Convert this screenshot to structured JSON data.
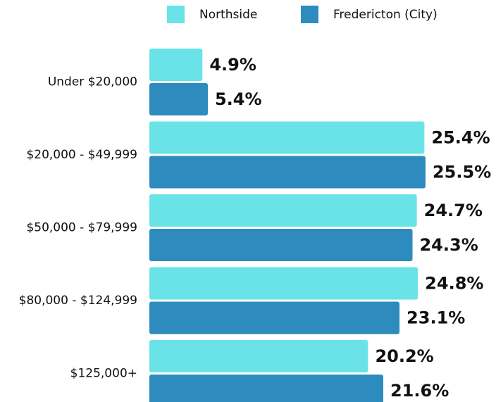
{
  "chart_data": {
    "type": "bar",
    "orientation": "horizontal",
    "categories": [
      "Under $20,000",
      "$20,000 - $49,999",
      "$50,000 - $79,999",
      "$80,000 - $124,999",
      "$125,000+"
    ],
    "series": [
      {
        "name": "Northside",
        "color": "#6ae3e8",
        "values": [
          4.9,
          25.4,
          24.7,
          24.8,
          20.2
        ],
        "value_labels": [
          "4.9%",
          "25.4%",
          "24.7%",
          "24.8%",
          "20.2%"
        ]
      },
      {
        "name": "Fredericton (City)",
        "color": "#2e8bbd",
        "values": [
          5.4,
          25.5,
          24.3,
          23.1,
          21.6
        ],
        "value_labels": [
          "5.4%",
          "25.5%",
          "24.3%",
          "23.1%",
          "21.6%"
        ]
      }
    ],
    "legend": "top"
  }
}
